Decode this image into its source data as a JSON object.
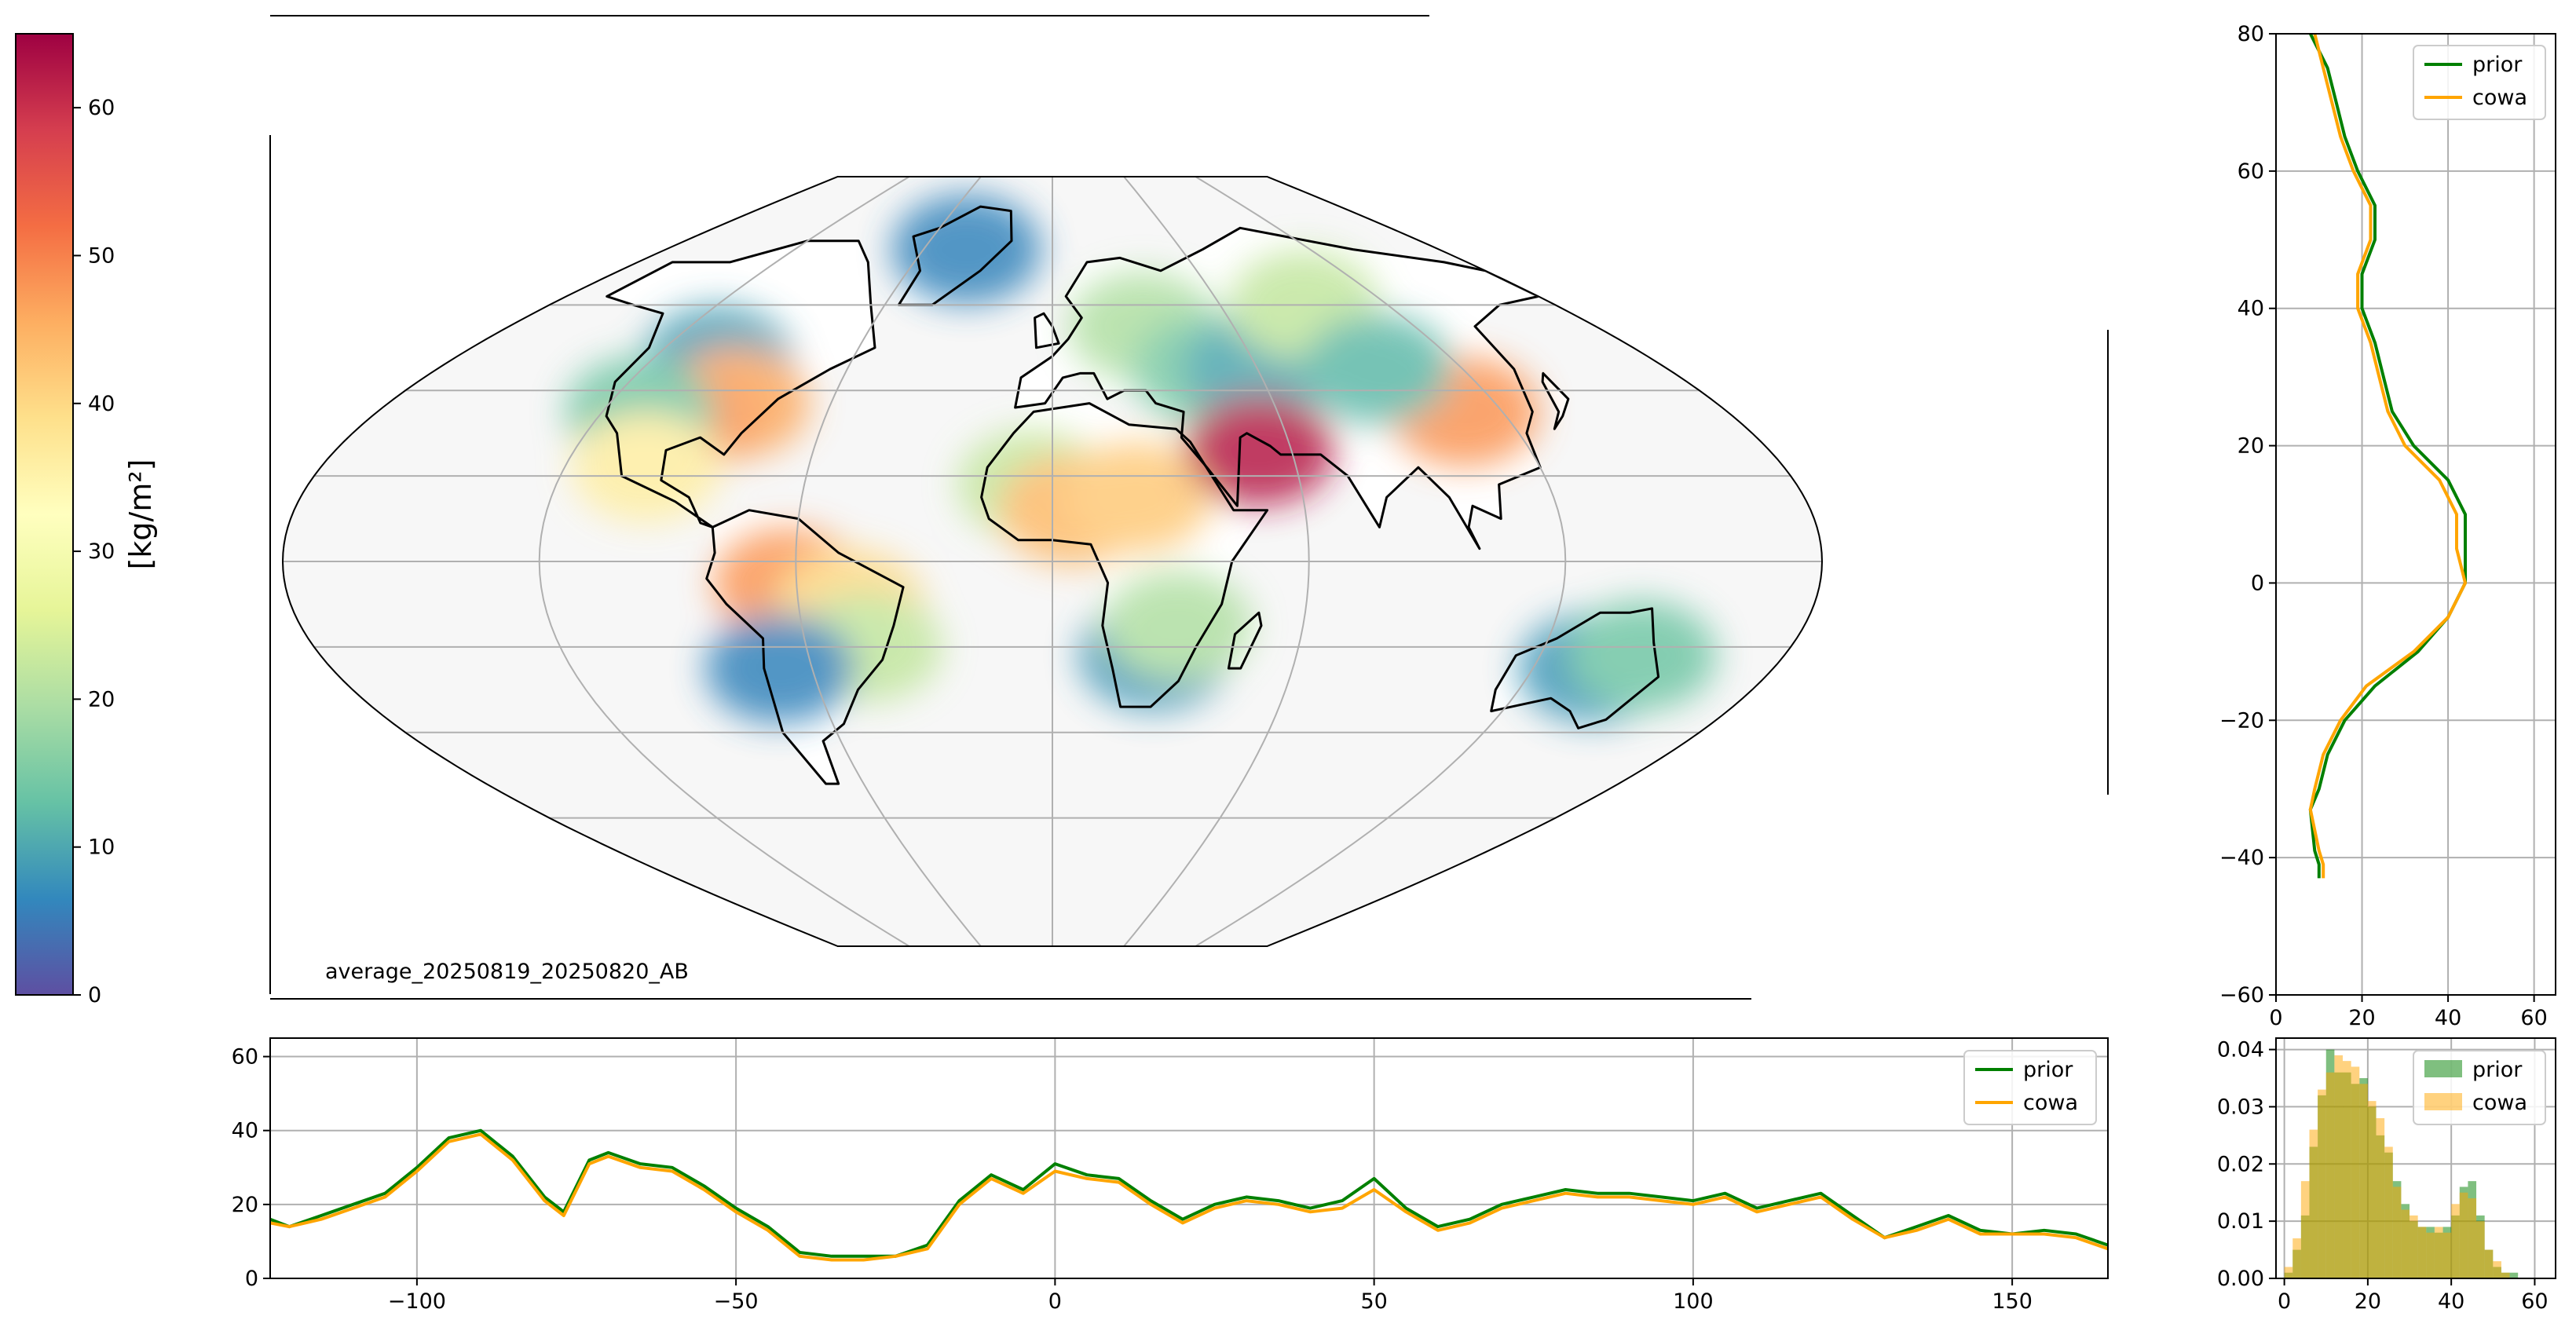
{
  "colors": {
    "prior": "#008000",
    "cowa": "#ffa500",
    "obs": "#1f77b4",
    "grid": "#b0b0b0",
    "axes": "#000000",
    "ocean": "#f7f7f7",
    "land": "#ffffff"
  },
  "colorbar": {
    "label": "[kg/m²]",
    "min": 0,
    "max": 65,
    "ticks": [
      "0",
      "10",
      "20",
      "30",
      "40",
      "50",
      "60"
    ],
    "cmap": "Spectral_r",
    "stops": [
      "#5e4fa2",
      "#3288bd",
      "#66c2a5",
      "#abdda4",
      "#e6f598",
      "#ffffbf",
      "#fee08b",
      "#fdae61",
      "#f46d43",
      "#d53e4f",
      "#9e0142"
    ]
  },
  "map": {
    "annotation": "average_20250819_20250820_AB",
    "projection": "pseudo-cylindrical, central longitude 0",
    "gridlines": true,
    "patches": [
      {
        "lon": -100,
        "lat": 47,
        "v": 9
      },
      {
        "lon": -86,
        "lat": 37,
        "v": 46
      },
      {
        "lon": -98,
        "lat": 33,
        "v": 48
      },
      {
        "lon": -110,
        "lat": 35,
        "v": 14
      },
      {
        "lon": -100,
        "lat": 22,
        "v": 36
      },
      {
        "lon": -62,
        "lat": -5,
        "v": 48
      },
      {
        "lon": -48,
        "lat": -10,
        "v": 40
      },
      {
        "lon": -45,
        "lat": -20,
        "v": 22
      },
      {
        "lon": -68,
        "lat": -25,
        "v": 6
      },
      {
        "lon": -5,
        "lat": 18,
        "v": 22
      },
      {
        "lon": 5,
        "lat": 12,
        "v": 44
      },
      {
        "lon": 20,
        "lat": 15,
        "v": 42
      },
      {
        "lon": 25,
        "lat": -22,
        "v": 8
      },
      {
        "lon": 30,
        "lat": -15,
        "v": 20
      },
      {
        "lon": 30,
        "lat": 55,
        "v": 20
      },
      {
        "lon": 45,
        "lat": 45,
        "v": 15
      },
      {
        "lon": 60,
        "lat": 45,
        "v": 10
      },
      {
        "lon": 90,
        "lat": 60,
        "v": 22
      },
      {
        "lon": 110,
        "lat": 35,
        "v": 48
      },
      {
        "lon": 95,
        "lat": 45,
        "v": 12
      },
      {
        "lon": 135,
        "lat": -25,
        "v": 8
      },
      {
        "lon": 145,
        "lat": -22,
        "v": 14
      },
      {
        "lon": -40,
        "lat": 73,
        "v": 6
      },
      {
        "lon": 52,
        "lat": 26,
        "v": 62
      }
    ]
  },
  "chart_data": [
    {
      "id": "lat-profile",
      "type": "line",
      "xlim": [
        0,
        65
      ],
      "ylim": [
        -60,
        80
      ],
      "xticks": [
        "0",
        "20",
        "40",
        "60"
      ],
      "yticks": [
        "−60",
        "−40",
        "−20",
        "0",
        "20",
        "40",
        "60",
        "80"
      ],
      "legend": [
        "prior",
        "cowa"
      ],
      "legend_position": "top-right",
      "grid": true,
      "series": [
        {
          "name": "prior",
          "y": [
            80,
            75,
            70,
            65,
            60,
            55,
            50,
            45,
            40,
            35,
            30,
            25,
            20,
            15,
            10,
            5,
            0,
            -5,
            -10,
            -15,
            -20,
            -25,
            -30,
            -33,
            -39,
            -41,
            -43
          ],
          "x": [
            8,
            12,
            14,
            16,
            19,
            23,
            23,
            20,
            20,
            23,
            25,
            27,
            32,
            40,
            44,
            44,
            44,
            40,
            33,
            23,
            16,
            12,
            10,
            8,
            9,
            10,
            10
          ]
        },
        {
          "name": "cowa",
          "y": [
            80,
            75,
            70,
            65,
            60,
            55,
            50,
            45,
            40,
            35,
            30,
            25,
            20,
            15,
            10,
            5,
            0,
            -5,
            -10,
            -15,
            -20,
            -25,
            -30,
            -33,
            -39,
            -41,
            -43
          ],
          "x": [
            9,
            11,
            13,
            15,
            18,
            22,
            22,
            19,
            19,
            22,
            24,
            26,
            30,
            38,
            42,
            42,
            44,
            40,
            32,
            21,
            15,
            11,
            9,
            8,
            10,
            11,
            11
          ]
        }
      ]
    },
    {
      "id": "lon-profile",
      "type": "line",
      "xlim": [
        -123,
        165
      ],
      "ylim": [
        0,
        65
      ],
      "xticks": [
        "−100",
        "−50",
        "0",
        "50",
        "100",
        "150"
      ],
      "yticks": [
        "0",
        "20",
        "40",
        "60"
      ],
      "legend": [
        "prior",
        "cowa"
      ],
      "legend_position": "top-right",
      "grid": true,
      "x": [
        -123,
        -120,
        -115,
        -110,
        -105,
        -100,
        -95,
        -90,
        -85,
        -80,
        -77,
        -73,
        -70,
        -65,
        -60,
        -55,
        -50,
        -45,
        -40,
        -35,
        -30,
        -25,
        -20,
        -15,
        -10,
        -5,
        0,
        5,
        10,
        15,
        20,
        25,
        30,
        35,
        40,
        45,
        50,
        55,
        60,
        65,
        70,
        75,
        80,
        85,
        90,
        95,
        100,
        105,
        110,
        115,
        120,
        125,
        130,
        135,
        140,
        145,
        150,
        155,
        160,
        165
      ],
      "series": [
        {
          "name": "prior",
          "values": [
            16,
            14,
            17,
            20,
            23,
            30,
            38,
            40,
            33,
            22,
            18,
            32,
            34,
            31,
            30,
            25,
            19,
            14,
            7,
            6,
            6,
            6,
            9,
            21,
            28,
            24,
            31,
            28,
            27,
            21,
            16,
            20,
            22,
            21,
            19,
            21,
            27,
            19,
            14,
            16,
            20,
            22,
            24,
            23,
            23,
            22,
            21,
            23,
            19,
            21,
            23,
            17,
            11,
            14,
            17,
            13,
            12,
            13,
            12,
            9
          ]
        },
        {
          "name": "cowa",
          "values": [
            15,
            14,
            16,
            19,
            22,
            29,
            37,
            39,
            32,
            21,
            17,
            31,
            33,
            30,
            29,
            24,
            18,
            13,
            6,
            5,
            5,
            6,
            8,
            20,
            27,
            23,
            29,
            27,
            26,
            20,
            15,
            19,
            21,
            20,
            18,
            19,
            24,
            18,
            13,
            15,
            19,
            21,
            23,
            22,
            22,
            21,
            20,
            22,
            18,
            20,
            22,
            16,
            11,
            13,
            16,
            12,
            12,
            12,
            11,
            8
          ]
        }
      ]
    },
    {
      "id": "histogram",
      "type": "bar",
      "xlim": [
        -2,
        65
      ],
      "ylim": [
        0,
        0.042
      ],
      "xticks": [
        "0",
        "20",
        "40",
        "60"
      ],
      "yticks": [
        "0.00",
        "0.01",
        "0.02",
        "0.03",
        "0.04"
      ],
      "legend": [
        "prior",
        "cowa"
      ],
      "legend_position": "top-right",
      "grid": true,
      "bin_width": 2,
      "bin_starts": [
        0,
        2,
        4,
        6,
        8,
        10,
        12,
        14,
        16,
        18,
        20,
        22,
        24,
        26,
        28,
        30,
        32,
        34,
        36,
        38,
        40,
        42,
        44,
        46,
        48,
        50,
        52,
        54,
        56,
        58,
        60,
        62
      ],
      "series": [
        {
          "name": "prior",
          "values": [
            0.001,
            0.005,
            0.011,
            0.023,
            0.032,
            0.04,
            0.036,
            0.036,
            0.034,
            0.035,
            0.03,
            0.025,
            0.022,
            0.017,
            0.013,
            0.01,
            0.009,
            0.009,
            0.008,
            0.009,
            0.011,
            0.016,
            0.017,
            0.011,
            0.005,
            0.002,
            0.001,
            0.001,
            0.0,
            0.0,
            0.0,
            0.0
          ]
        },
        {
          "name": "cowa",
          "values": [
            0.002,
            0.007,
            0.017,
            0.026,
            0.033,
            0.036,
            0.039,
            0.038,
            0.037,
            0.034,
            0.031,
            0.028,
            0.023,
            0.016,
            0.012,
            0.011,
            0.009,
            0.008,
            0.009,
            0.008,
            0.013,
            0.015,
            0.014,
            0.01,
            0.005,
            0.003,
            0.001,
            0.0,
            0.0,
            0.0,
            0.0,
            0.0
          ]
        }
      ]
    }
  ]
}
